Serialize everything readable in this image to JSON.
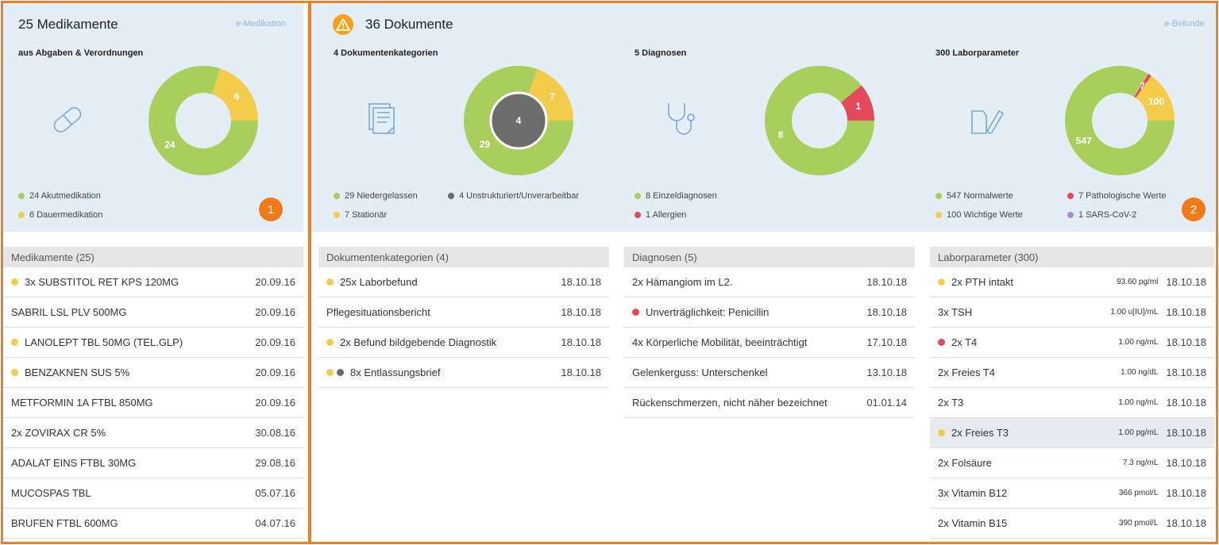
{
  "colors": {
    "green": "#a8cf5b",
    "yellow": "#f4cc4c",
    "red": "#e4495b",
    "gray": "#6d6d6d",
    "purple": "#a98bd3",
    "orange": "#ef7a1a",
    "accent_blue": "#8fb6dc"
  },
  "medication": {
    "title": "25 Medikamente",
    "link": "e-Medikation",
    "subtitle": "aus Abgaben & Verordnungen",
    "icon": "pill-icon",
    "chart": {
      "segments": [
        {
          "value": 24,
          "label": "24",
          "color": "green"
        },
        {
          "value": 6,
          "label": "6",
          "color": "yellow"
        }
      ]
    },
    "legend": [
      {
        "label": "24 Akutmedikation",
        "color": "green"
      },
      {
        "label": "6 Dauermedikation",
        "color": "yellow"
      }
    ],
    "badge": "1"
  },
  "documents": {
    "title": "36 Dokumente",
    "link": "e-Befunde",
    "badge": "2",
    "warning_icon": "warning-icon",
    "categories": {
      "subtitle": "4 Dokumentenkategorien",
      "icon": "documents-icon",
      "chart": {
        "segments": [
          {
            "value": 29,
            "label": "29",
            "color": "green"
          },
          {
            "value": 7,
            "label": "7",
            "color": "yellow"
          }
        ],
        "center_label": "4"
      },
      "legend": [
        {
          "label": "29 Niedergelassen",
          "color": "green"
        },
        {
          "label": "4 Unstrukturiert/Unverarbeitbar",
          "color": "gray"
        },
        {
          "label": "7 Stationär",
          "color": "yellow"
        }
      ]
    },
    "diagnoses": {
      "subtitle": "5 Diagnosen",
      "icon": "stethoscope-icon",
      "chart": {
        "segments": [
          {
            "value": 8,
            "label": "8",
            "color": "green"
          },
          {
            "value": 1,
            "label": "1",
            "color": "red"
          }
        ]
      },
      "legend": [
        {
          "label": "8 Einzeldiagnosen",
          "color": "green"
        },
        {
          "label": "1 Allergien",
          "color": "red"
        }
      ]
    },
    "lab": {
      "subtitle": "300 Laborparameter",
      "icon": "lab-tubes-icon",
      "chart": {
        "segments": [
          {
            "value": 547,
            "label": "547",
            "color": "green"
          },
          {
            "value": 100,
            "label": "100",
            "color": "yellow"
          },
          {
            "value": 7,
            "label": "7",
            "color": "red"
          },
          {
            "value": 1,
            "label": "1",
            "color": "purple"
          }
        ]
      },
      "legend": [
        {
          "label": "547 Normalwerte",
          "color": "green"
        },
        {
          "label": "7 Pathologische Werte",
          "color": "red"
        },
        {
          "label": "100 Wichtige Werte",
          "color": "yellow"
        },
        {
          "label": "1 SARS-CoV-2",
          "color": "purple"
        }
      ]
    }
  },
  "lists": {
    "medication": {
      "header": "Medikamente (25)",
      "rows": [
        {
          "name": "3x SUBSTITOL RET KPS 120MG",
          "date": "20.09.16",
          "dots": [
            "yellow"
          ]
        },
        {
          "name": "SABRIL LSL PLV 500MG",
          "date": "20.09.16",
          "dots": []
        },
        {
          "name": "LANOLEPT TBL 50MG (TEL.GLP)",
          "date": "20.09.16",
          "dots": [
            "yellow"
          ]
        },
        {
          "name": "BENZAKNEN SUS 5%",
          "date": "20.09.16",
          "dots": [
            "yellow"
          ]
        },
        {
          "name": "METFORMIN 1A FTBL 850MG",
          "date": "20.09.16",
          "dots": []
        },
        {
          "name": "2x ZOVIRAX CR 5%",
          "date": "30.08.16",
          "dots": []
        },
        {
          "name": "ADALAT EINS FTBL 30MG",
          "date": "29.08.16",
          "dots": []
        },
        {
          "name": "MUCOSPAS TBL",
          "date": "05.07.16",
          "dots": []
        },
        {
          "name": "BRUFEN FTBL 600MG",
          "date": "04.07.16",
          "dots": []
        }
      ]
    },
    "categories": {
      "header": "Dokumentenkategorien (4)",
      "rows": [
        {
          "name": "25x Laborbefund",
          "date": "18.10.18",
          "dots": [
            "yellow"
          ]
        },
        {
          "name": "Pflegesituationsbericht",
          "date": "18.10.18",
          "dots": []
        },
        {
          "name": "2x Befund bildgebende Diagnostik",
          "date": "18.10.18",
          "dots": [
            "yellow"
          ]
        },
        {
          "name": "8x Entlassungsbrief",
          "date": "18.10.18",
          "dots": [
            "yellow",
            "gray"
          ]
        }
      ]
    },
    "diagnoses": {
      "header": "Diagnosen (5)",
      "rows": [
        {
          "name": "2x Hämangiom im L2.",
          "date": "18.10.18",
          "dots": []
        },
        {
          "name": "Unverträglichkeit: Penicillin",
          "date": "18.10.18",
          "dots": [
            "red"
          ]
        },
        {
          "name": "4x Körperliche Mobilität, beeinträchtigt",
          "date": "17.10.18",
          "dots": []
        },
        {
          "name": "Gelenkerguss: Unterschenkel",
          "date": "13.10.18",
          "dots": []
        },
        {
          "name": "Rückenschmerzen, nicht näher bezeichnet",
          "date": "01.01.14",
          "dots": []
        }
      ]
    },
    "lab": {
      "header": "Laborparameter (300)",
      "rows": [
        {
          "name": "2x PTH intakt",
          "unit": "93.60 pg/ml",
          "date": "18.10.18",
          "dots": [
            "yellow"
          ]
        },
        {
          "name": "3x TSH",
          "unit": "1.00 u[IU]/mL",
          "date": "18.10.18",
          "dots": []
        },
        {
          "name": "2x T4",
          "unit": "1.00 ng/mL",
          "date": "18.10.18",
          "dots": [
            "red"
          ]
        },
        {
          "name": "2x Freies T4",
          "unit": "1.00 ng/dL",
          "date": "18.10.18",
          "dots": []
        },
        {
          "name": "2x T3",
          "unit": "1.00 ng/mL",
          "date": "18.10.18",
          "dots": []
        },
        {
          "name": "2x Freies T3",
          "unit": "1.00 pg/mL",
          "date": "18.10.18",
          "dots": [
            "yellow"
          ],
          "highlight": true
        },
        {
          "name": "2x Folsäure",
          "unit": "7.3 ng/mL",
          "date": "18.10.18",
          "dots": []
        },
        {
          "name": "3x Vitamin B12",
          "unit": "366 pmol/L",
          "date": "18.10.18",
          "dots": []
        },
        {
          "name": "2x Vitamin B15",
          "unit": "390 pmol/L",
          "date": "18.10.18",
          "dots": []
        }
      ]
    }
  }
}
